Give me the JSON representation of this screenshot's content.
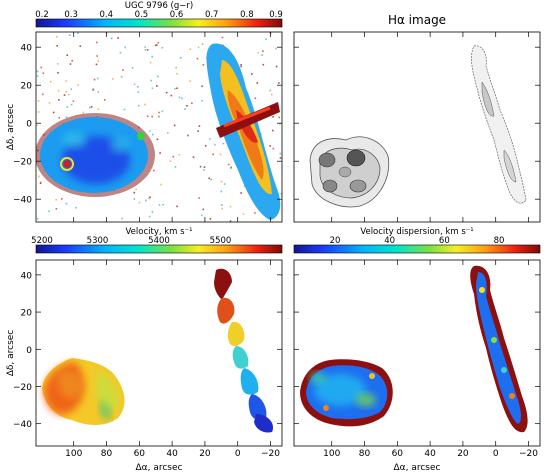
{
  "figure": {
    "panels": [
      {
        "id": "color-index",
        "colorbar": {
          "title": "UGC 9796 (g−r)",
          "ticks": [
            "0.2",
            "0.3",
            "0.4",
            "0.5",
            "0.6",
            "0.7",
            "0.8",
            "0.9"
          ],
          "range": [
            0.2,
            0.9
          ]
        },
        "ylabel": "Δδ, arcsec",
        "yticks": [
          "40",
          "20",
          "0",
          "−20",
          "−40"
        ],
        "xticks": []
      },
      {
        "id": "halpha",
        "title": "Hα image",
        "yticks": [],
        "xticks": []
      },
      {
        "id": "velocity",
        "colorbar": {
          "title": "Velocity, km s⁻¹",
          "ticks": [
            "5200",
            "5300",
            "5400",
            "5500"
          ],
          "range": [
            5200,
            5600
          ]
        },
        "ylabel": "Δδ, arcsec",
        "yticks": [
          "40",
          "20",
          "0",
          "−20",
          "−40"
        ],
        "xlabel": "Δα, arcsec",
        "xticks": [
          "100",
          "80",
          "60",
          "40",
          "20",
          "0",
          "−20"
        ]
      },
      {
        "id": "dispersion",
        "colorbar": {
          "title": "Velocity dispersion, km s⁻¹",
          "ticks": [
            "20",
            "40",
            "60",
            "80"
          ],
          "range": [
            5,
            95
          ]
        },
        "xlabel": "Δα, arcsec",
        "xticks": [
          "100",
          "80",
          "60",
          "40",
          "20",
          "0",
          "−20"
        ]
      }
    ]
  },
  "chart_data": [
    {
      "type": "heatmap",
      "quantity": "g−r color index",
      "x_range": [
        123,
        -27
      ],
      "y_range": [
        -52,
        48
      ],
      "value_range": [
        0.2,
        0.9
      ],
      "regions": [
        {
          "object": "left galaxy",
          "x_center": 95,
          "y_center": -22,
          "typical_value": 0.35,
          "nucleus_value": 0.85
        },
        {
          "object": "right galaxy",
          "x_center": 0,
          "y_center": 5,
          "typical_value": 0.75,
          "dust_lane_value": 0.9
        }
      ]
    },
    {
      "type": "heatmap",
      "quantity": "Hα intensity",
      "x_range": [
        123,
        -27
      ],
      "y_range": [
        -52,
        48
      ]
    },
    {
      "type": "heatmap",
      "quantity": "line-of-sight velocity",
      "unit": "km/s",
      "x_range": [
        123,
        -27
      ],
      "y_range": [
        -52,
        48
      ],
      "value_range": [
        5200,
        5600
      ],
      "regions": [
        {
          "object": "left galaxy",
          "x_center": 95,
          "y_center": -28,
          "typical_value": 5530
        },
        {
          "object": "right galaxy",
          "north_end_value": 5600,
          "south_end_value": 5200
        }
      ]
    },
    {
      "type": "heatmap",
      "quantity": "velocity dispersion",
      "unit": "km/s",
      "x_range": [
        123,
        -27
      ],
      "y_range": [
        -52,
        48
      ],
      "value_range": [
        5,
        95
      ],
      "regions": [
        {
          "object": "left galaxy interior",
          "typical_value": 35
        },
        {
          "object": "galaxy edges",
          "typical_value": 90
        }
      ]
    }
  ]
}
